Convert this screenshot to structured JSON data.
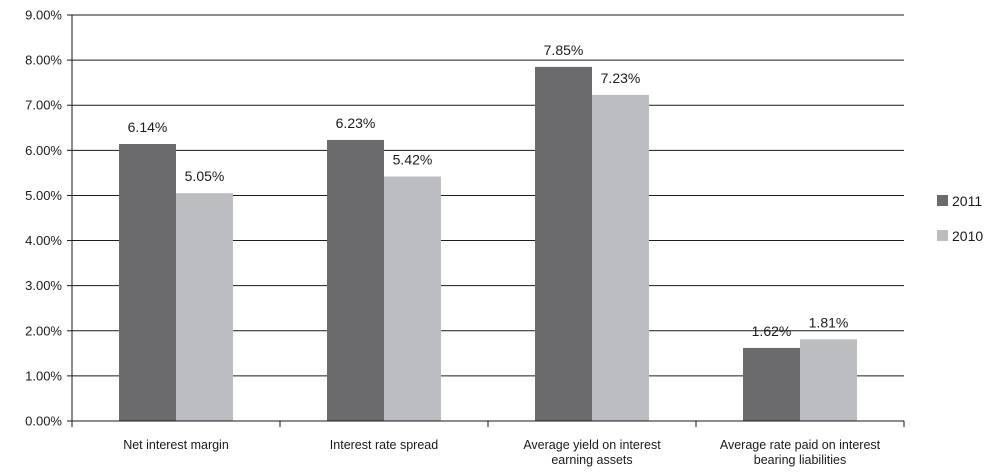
{
  "chart_data": {
    "type": "bar",
    "categories": [
      [
        "Net interest margin"
      ],
      [
        "Interest rate spread"
      ],
      [
        "Average yield on interest",
        "earning assets"
      ],
      [
        "Average rate paid on interest",
        "bearing liabilities"
      ]
    ],
    "series": [
      {
        "name": "2011",
        "values": [
          6.14,
          6.23,
          7.85,
          1.62
        ],
        "labels": [
          "6.14%",
          "6.23%",
          "7.85%",
          "1.62%"
        ],
        "color": "#6b6b6e"
      },
      {
        "name": "2010",
        "values": [
          5.05,
          5.42,
          7.23,
          1.81
        ],
        "labels": [
          "5.05%",
          "5.42%",
          "7.23%",
          "1.81%"
        ],
        "color": "#bcbdc0"
      }
    ],
    "ylim": [
      0,
      9
    ],
    "yticks": [
      0,
      1,
      2,
      3,
      4,
      5,
      6,
      7,
      8,
      9
    ],
    "ytick_labels": [
      "0.00%",
      "1.00%",
      "2.00%",
      "3.00%",
      "4.00%",
      "5.00%",
      "6.00%",
      "7.00%",
      "8.00%",
      "9.00%"
    ],
    "grid": true,
    "legend_position": "right",
    "title": "",
    "xlabel": "",
    "ylabel": ""
  }
}
